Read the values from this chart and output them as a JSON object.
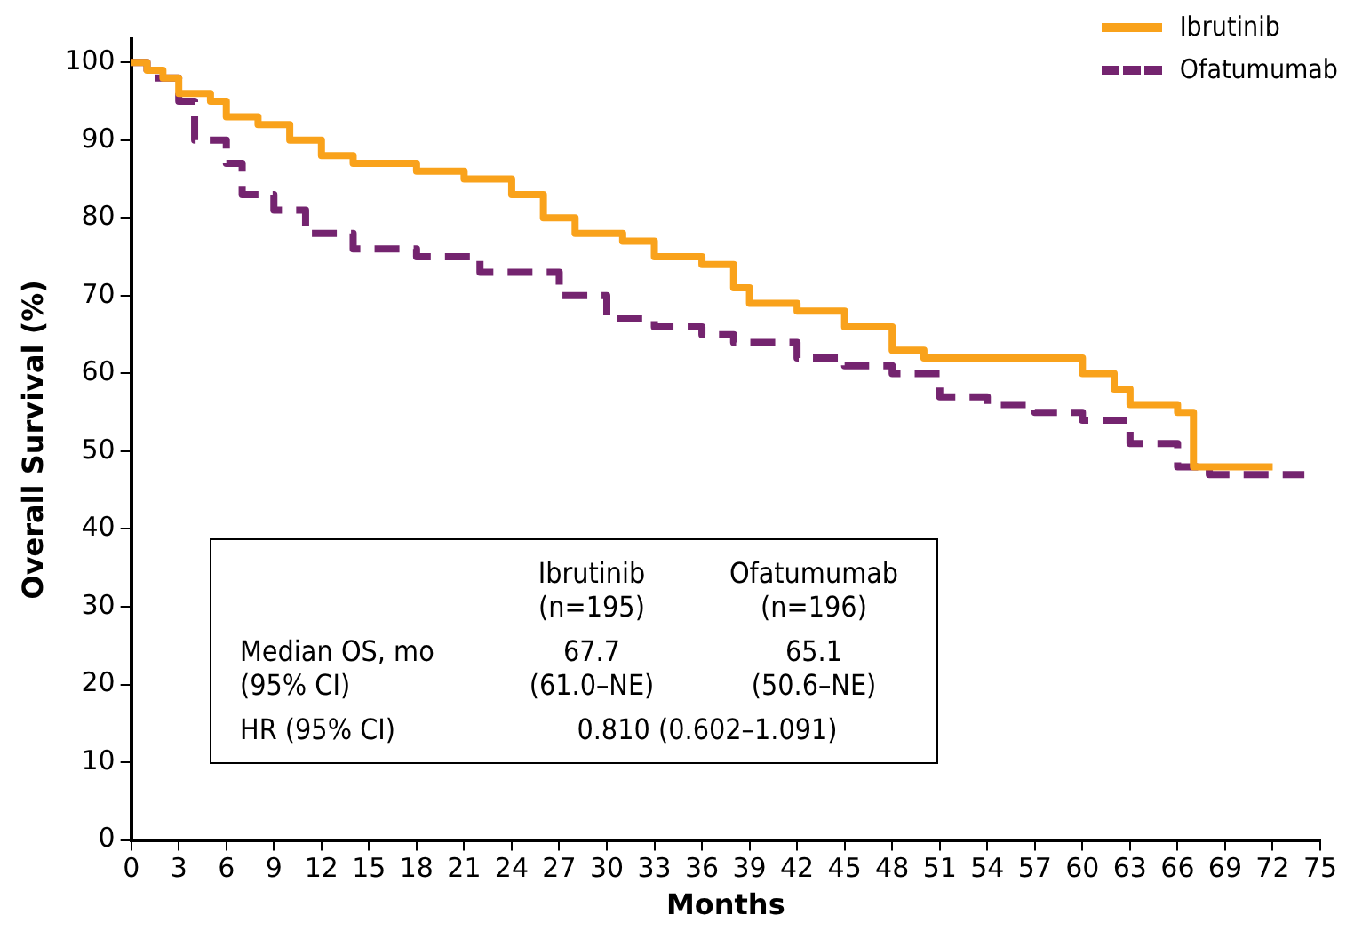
{
  "chart_data": {
    "type": "step",
    "xlabel": "Months",
    "ylabel": "Overall Survival (%)",
    "xlim": [
      0,
      75
    ],
    "ylim": [
      0,
      103
    ],
    "xticks": [
      0,
      3,
      6,
      9,
      12,
      15,
      18,
      21,
      24,
      27,
      30,
      33,
      36,
      39,
      42,
      45,
      48,
      51,
      54,
      57,
      60,
      63,
      66,
      69,
      72,
      75
    ],
    "yticks": [
      0,
      10,
      20,
      30,
      40,
      50,
      60,
      70,
      80,
      90,
      100
    ],
    "grid": false,
    "legend": "top right",
    "marker": "none",
    "series": [
      {
        "name": "Ibrutinib",
        "color": "#f9a21b",
        "line_style": "solid",
        "x": [
          0,
          1,
          2,
          3,
          5,
          6,
          8,
          10,
          12,
          14,
          18,
          21,
          24,
          26,
          28,
          31,
          33,
          36,
          38,
          39,
          42,
          45,
          48,
          50,
          57,
          60,
          62,
          63,
          66,
          67,
          72
        ],
        "values": [
          100,
          99,
          98,
          96,
          95,
          93,
          92,
          90,
          88,
          87,
          86,
          85,
          83,
          80,
          78,
          77,
          75,
          74,
          71,
          69,
          68,
          66,
          63,
          62,
          62,
          60,
          58,
          56,
          55,
          48,
          48
        ]
      },
      {
        "name": "Ofatumumab",
        "color": "#74246f",
        "line_style": "dashed",
        "x": [
          0,
          1,
          3,
          4,
          6,
          7,
          9,
          11,
          14,
          18,
          22,
          27,
          30,
          33,
          36,
          38,
          42,
          45,
          48,
          51,
          54,
          57,
          60,
          63,
          66,
          68,
          74
        ],
        "values": [
          100,
          98,
          95,
          90,
          87,
          83,
          81,
          78,
          76,
          75,
          73,
          70,
          67,
          66,
          65,
          64,
          62,
          61,
          60,
          57,
          56,
          55,
          54,
          51,
          48,
          47,
          47
        ]
      }
    ],
    "annotations": [
      "Ibrutinib\n(n=195)",
      "Ofatumumab\n(n=196)",
      "Median OS, mo\n(95% CI)",
      "67.7\n(61.0–NE)",
      "65.1\n(50.6–NE)",
      "HR (95% CI)",
      "0.810 (0.602–1.091)"
    ]
  }
}
